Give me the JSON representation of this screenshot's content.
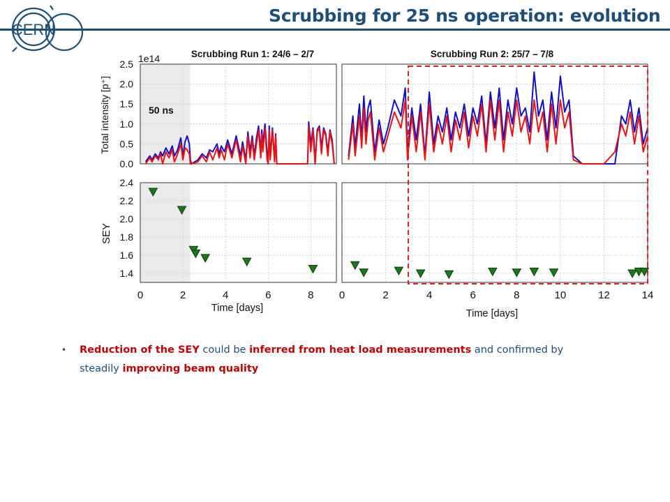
{
  "header": {
    "title": "Scrubbing for 25 ns operation: evolution",
    "logo_text": "CERN",
    "accent_color": "#1f4e79"
  },
  "figure": {
    "panel_titles": [
      "Scrubbing  Run 1:  24/6 – 2/7",
      "Scrubbing  Run 2:  25/7 – 7/8"
    ],
    "label_50ns": "50 ns",
    "highlight_color": "#e0201c"
  },
  "chart_data": [
    {
      "type": "line",
      "panel": "run1-intensity",
      "title": "Scrubbing  Run 1:  24/6 – 2/7",
      "ylabel": "Total intensity [p⁺]",
      "yscale_label": "1e14",
      "ylim": [
        0,
        2.5
      ],
      "xlim": [
        0,
        9.2
      ],
      "yticks": [
        "0.0",
        "0.5",
        "1.0",
        "1.5",
        "2.0",
        "2.5"
      ],
      "shaded_x": [
        0,
        2.35
      ],
      "shaded_label": "50 ns",
      "series": [
        {
          "color": "#1010cc",
          "x": [
            0.25,
            0.45,
            0.55,
            0.7,
            0.85,
            0.95,
            1.05,
            1.2,
            1.35,
            1.5,
            1.6,
            1.75,
            1.9,
            2.0,
            2.1,
            2.2,
            2.3,
            2.35,
            2.4,
            2.7,
            2.9,
            3.1,
            3.25,
            3.4,
            3.6,
            3.7,
            3.8,
            3.95,
            4.1,
            4.3,
            4.5,
            4.7,
            4.8,
            4.95,
            5.05,
            5.15,
            5.25,
            5.35,
            5.45,
            5.55,
            5.65,
            5.7,
            5.75,
            5.85,
            5.95,
            6.0,
            6.05,
            6.1,
            6.2,
            6.3,
            6.35,
            6.4,
            6.5,
            6.6,
            6.8,
            7.0,
            7.2,
            7.4,
            7.5,
            7.6,
            7.7,
            7.8,
            7.85,
            7.9,
            8.0,
            8.1,
            8.15,
            8.2,
            8.3,
            8.4,
            8.5,
            8.6,
            8.7,
            8.8,
            8.9,
            9.0,
            9.1
          ],
          "y": [
            0.05,
            0.2,
            0.1,
            0.25,
            0.15,
            0.3,
            0.2,
            0.4,
            0.25,
            0.45,
            0.2,
            0.35,
            0.65,
            0.2,
            0.55,
            0.7,
            0.5,
            0.1,
            0.0,
            0.1,
            0.25,
            0.15,
            0.35,
            0.3,
            0.5,
            0.25,
            0.45,
            0.3,
            0.6,
            0.25,
            0.7,
            0.2,
            0.55,
            0.1,
            0.8,
            0.3,
            0.7,
            0.2,
            0.65,
            0.95,
            0.3,
            0.85,
            0.5,
            1.0,
            0.3,
            0.0,
            0.95,
            0.2,
            0.9,
            0.1,
            0.75,
            0.0,
            0.0,
            0.0,
            0.0,
            0.0,
            0.0,
            0.0,
            0.0,
            0.0,
            0.0,
            0.0,
            0.0,
            1.05,
            0.5,
            0.9,
            0.6,
            0.0,
            0.85,
            0.95,
            0.4,
            0.9,
            0.75,
            0.3,
            0.85,
            0.6,
            0.0
          ]
        },
        {
          "color": "#ee1111",
          "x": [
            0.25,
            0.45,
            0.55,
            0.7,
            0.85,
            0.95,
            1.05,
            1.2,
            1.35,
            1.5,
            1.6,
            1.75,
            1.9,
            2.0,
            2.1,
            2.2,
            2.3,
            2.35,
            2.4,
            2.7,
            2.9,
            3.1,
            3.25,
            3.4,
            3.6,
            3.7,
            3.8,
            3.95,
            4.1,
            4.3,
            4.5,
            4.7,
            4.8,
            4.95,
            5.05,
            5.15,
            5.25,
            5.35,
            5.45,
            5.55,
            5.65,
            5.7,
            5.75,
            5.85,
            5.95,
            6.0,
            6.05,
            6.1,
            6.2,
            6.3,
            6.35,
            6.4,
            6.5,
            6.6,
            6.8,
            7.0,
            7.2,
            7.4,
            7.5,
            7.6,
            7.7,
            7.8,
            7.85,
            7.9,
            8.0,
            8.1,
            8.15,
            8.2,
            8.3,
            8.4,
            8.5,
            8.6,
            8.7,
            8.8,
            8.9,
            9.0,
            9.1
          ],
          "y": [
            0.0,
            0.15,
            0.05,
            0.2,
            0.1,
            0.25,
            0.0,
            0.3,
            0.15,
            0.35,
            0.05,
            0.25,
            0.5,
            0.1,
            0.4,
            0.35,
            0.25,
            0.0,
            0.0,
            0.05,
            0.2,
            0.05,
            0.3,
            0.1,
            0.4,
            0.15,
            0.35,
            0.1,
            0.5,
            0.15,
            0.6,
            0.05,
            0.45,
            0.0,
            0.7,
            0.15,
            0.6,
            0.1,
            0.5,
            0.85,
            0.15,
            0.75,
            0.3,
            0.9,
            0.1,
            0.0,
            0.85,
            0.1,
            0.85,
            0.05,
            0.7,
            0.0,
            0.0,
            0.0,
            0.0,
            0.0,
            0.0,
            0.0,
            0.0,
            0.0,
            0.0,
            0.0,
            0.0,
            0.95,
            0.3,
            0.85,
            0.4,
            0.0,
            0.8,
            0.9,
            0.25,
            0.85,
            0.7,
            0.2,
            0.8,
            0.5,
            0.0
          ]
        }
      ]
    },
    {
      "type": "line",
      "panel": "run2-intensity",
      "title": "Scrubbing  Run 2:  25/7 – 7/8",
      "ylim": [
        0,
        2.5
      ],
      "xlim": [
        0,
        14
      ],
      "series": [
        {
          "color": "#1010cc",
          "x": [
            0.3,
            0.5,
            0.6,
            0.8,
            0.9,
            1.0,
            1.1,
            1.2,
            1.3,
            1.5,
            1.7,
            1.9,
            2.1,
            2.4,
            2.7,
            2.9,
            3.0,
            3.2,
            3.4,
            3.6,
            3.8,
            4.0,
            4.2,
            4.4,
            4.6,
            4.8,
            5.0,
            5.2,
            5.4,
            5.6,
            5.8,
            6.0,
            6.2,
            6.4,
            6.6,
            6.8,
            7.0,
            7.2,
            7.4,
            7.6,
            7.8,
            8.0,
            8.2,
            8.4,
            8.6,
            8.8,
            9.0,
            9.2,
            9.4,
            9.6,
            9.8,
            10.0,
            10.2,
            10.4,
            10.6,
            11.0,
            11.5,
            12.0,
            12.5,
            12.8,
            13.0,
            13.2,
            13.4,
            13.6,
            13.8,
            14.0
          ],
          "y": [
            0.2,
            1.2,
            0.4,
            1.5,
            0.6,
            1.7,
            0.8,
            1.4,
            1.6,
            0.3,
            1.1,
            0.5,
            0.9,
            1.6,
            1.2,
            1.9,
            0.3,
            1.4,
            0.6,
            1.5,
            0.2,
            1.8,
            0.5,
            1.2,
            0.8,
            1.4,
            0.6,
            1.3,
            0.9,
            1.5,
            0.7,
            1.4,
            1.0,
            1.7,
            0.5,
            1.8,
            0.9,
            1.9,
            0.6,
            1.6,
            1.0,
            1.9,
            1.2,
            1.4,
            0.8,
            2.3,
            1.2,
            1.6,
            0.6,
            1.8,
            0.9,
            2.2,
            1.3,
            1.6,
            0.2,
            0.0,
            0.0,
            0.0,
            0.0,
            1.2,
            1.0,
            1.6,
            0.8,
            1.4,
            0.5,
            0.9
          ]
        },
        {
          "color": "#ee1111",
          "x": [
            0.3,
            0.5,
            0.6,
            0.8,
            0.9,
            1.0,
            1.1,
            1.2,
            1.3,
            1.5,
            1.7,
            1.9,
            2.1,
            2.4,
            2.7,
            2.9,
            3.0,
            3.2,
            3.4,
            3.6,
            3.8,
            4.0,
            4.2,
            4.4,
            4.6,
            4.8,
            5.0,
            5.2,
            5.4,
            5.6,
            5.8,
            6.0,
            6.2,
            6.4,
            6.6,
            6.8,
            7.0,
            7.2,
            7.4,
            7.6,
            7.8,
            8.0,
            8.2,
            8.4,
            8.6,
            8.8,
            9.0,
            9.2,
            9.4,
            9.6,
            9.8,
            10.0,
            10.2,
            10.4,
            10.6,
            11.0,
            11.5,
            12.0,
            12.5,
            12.8,
            13.0,
            13.2,
            13.4,
            13.6,
            13.8,
            14.0
          ],
          "y": [
            0.1,
            1.0,
            0.2,
            1.2,
            0.4,
            1.4,
            0.5,
            1.1,
            1.3,
            0.1,
            0.9,
            0.3,
            0.7,
            1.3,
            0.9,
            1.6,
            0.1,
            1.2,
            0.3,
            1.3,
            0.1,
            1.5,
            0.3,
            1.0,
            0.5,
            1.2,
            0.3,
            1.1,
            0.6,
            1.3,
            0.4,
            1.2,
            0.7,
            1.5,
            0.3,
            1.6,
            0.6,
            1.6,
            0.3,
            1.3,
            0.7,
            1.6,
            0.8,
            1.2,
            0.5,
            1.6,
            0.8,
            1.3,
            0.3,
            1.5,
            0.5,
            1.6,
            0.9,
            1.3,
            0.1,
            0.0,
            0.0,
            0.0,
            0.3,
            1.0,
            0.7,
            1.3,
            0.5,
            1.2,
            0.3,
            0.7
          ]
        }
      ]
    },
    {
      "type": "scatter",
      "panel": "run1-sey",
      "ylabel": "SEY",
      "xlabel": "Time [days]",
      "xlim": [
        0,
        9.2
      ],
      "ylim": [
        1.3,
        2.4
      ],
      "xticks": [
        "0",
        "2",
        "4",
        "6",
        "8"
      ],
      "yticks": [
        "1.4",
        "1.6",
        "1.8",
        "2.0",
        "2.2",
        "2.4"
      ],
      "marker": "triangle-down",
      "color": "#1a7a1a",
      "x": [
        0.6,
        1.95,
        2.5,
        2.6,
        3.05,
        5.0,
        8.1
      ],
      "y": [
        2.3,
        2.1,
        1.66,
        1.62,
        1.57,
        1.53,
        1.45
      ]
    },
    {
      "type": "scatter",
      "panel": "run2-sey",
      "xlabel": "Time [days]",
      "xlim": [
        0,
        14
      ],
      "ylim": [
        1.3,
        2.4
      ],
      "xticks": [
        "0",
        "2",
        "4",
        "6",
        "8",
        "10",
        "12",
        "14"
      ],
      "marker": "triangle-down",
      "color": "#1a7a1a",
      "x": [
        0.6,
        1.0,
        2.6,
        3.6,
        4.9,
        6.9,
        8.0,
        8.8,
        9.7,
        13.3,
        13.6,
        13.85
      ],
      "y": [
        1.49,
        1.41,
        1.43,
        1.4,
        1.39,
        1.42,
        1.41,
        1.42,
        1.41,
        1.4,
        1.42,
        1.42
      ]
    }
  ],
  "bullet": {
    "part1": "Reduction of the SEY",
    "part2": " could be ",
    "part3": "inferred from heat load measurements",
    "part4": " and confirmed by steadily ",
    "part5": "improving beam quality"
  }
}
